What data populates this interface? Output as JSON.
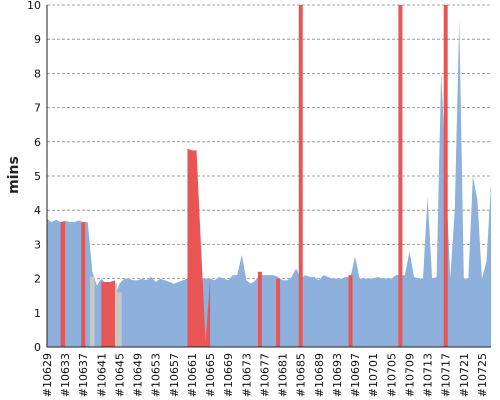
{
  "chart_data": {
    "type": "area",
    "ylabel": "mins",
    "xlabel": "",
    "ylim": [
      0,
      10
    ],
    "yticks": [
      0,
      1,
      2,
      3,
      4,
      5,
      6,
      7,
      8,
      9,
      10
    ],
    "grid": "horizontal-dashed",
    "x_tick_labels": [
      "#10629",
      "#10633",
      "#10637",
      "#10641",
      "#10645",
      "#10649",
      "#10653",
      "#10657",
      "#10661",
      "#10665",
      "#10669",
      "#10673",
      "#10677",
      "#10681",
      "#10685",
      "#10689",
      "#10693",
      "#10697",
      "#10701",
      "#10705",
      "#10709",
      "#10713",
      "#10717",
      "#10721",
      "#10725"
    ],
    "colors": {
      "area": "#8eb0dc",
      "fail": "#e85555",
      "gray": "#c8c8c8",
      "grid": "#888888",
      "axis": "#222222"
    },
    "series": [
      {
        "style": "area",
        "x": [
          10629,
          10630,
          10631,
          10632,
          10633,
          10634,
          10635,
          10636,
          10637,
          10638,
          10639,
          10640,
          10641,
          10642,
          10643,
          10644,
          10645,
          10646,
          10647,
          10648,
          10649,
          10650,
          10651,
          10652,
          10653,
          10654,
          10655,
          10656,
          10657,
          10658,
          10659,
          10660,
          10661,
          10662,
          10663,
          10664,
          10665,
          10666,
          10667,
          10668,
          10669,
          10670,
          10671,
          10672,
          10673,
          10674,
          10675,
          10676,
          10677,
          10678,
          10679,
          10680,
          10681,
          10682,
          10683,
          10684,
          10685,
          10686,
          10687,
          10688,
          10689,
          10690,
          10691,
          10692,
          10693,
          10694,
          10695,
          10696,
          10697,
          10698,
          10699,
          10700,
          10701,
          10702,
          10703,
          10704,
          10705,
          10706,
          10707,
          10708,
          10709,
          10710,
          10711,
          10712,
          10713,
          10714,
          10715,
          10716,
          10717,
          10718,
          10719,
          10720,
          10721,
          10722,
          10723,
          10724,
          10725,
          10726,
          10727
        ],
        "values": [
          3.75,
          3.65,
          3.72,
          3.65,
          3.7,
          3.65,
          3.65,
          3.7,
          3.65,
          3.65,
          2.2,
          1.8,
          2.0,
          1.85,
          1.9,
          1.5,
          1.85,
          2.0,
          2.0,
          1.95,
          1.95,
          2.0,
          1.95,
          2.05,
          1.9,
          2.0,
          1.95,
          1.9,
          1.85,
          1.9,
          1.95,
          2.0,
          2.0,
          2.0,
          2.0,
          2.0,
          2.0,
          1.95,
          2.05,
          2.0,
          1.95,
          2.1,
          2.1,
          2.7,
          1.95,
          1.85,
          1.95,
          2.1,
          2.1,
          2.1,
          2.1,
          2.05,
          1.95,
          1.95,
          2.05,
          2.3,
          2.0,
          2.1,
          2.05,
          2.05,
          1.95,
          2.1,
          2.05,
          2.0,
          2.0,
          2.0,
          2.05,
          2.05,
          2.65,
          2.0,
          2.0,
          2.0,
          2.0,
          2.05,
          2.0,
          2.0,
          2.0,
          2.1,
          2.1,
          2.1,
          2.8,
          2.05,
          2.0,
          2.0,
          4.4,
          2.0,
          2.05,
          8.05,
          5.2,
          2.0,
          4.0,
          9.6,
          2.0,
          2.0,
          5.0,
          4.3,
          2.0,
          2.5,
          4.75
        ]
      },
      {
        "style": "gray-bars",
        "x": [
          10639,
          10643,
          10644,
          10645
        ],
        "values": [
          2.05,
          1.85,
          1.85,
          1.6
        ]
      },
      {
        "style": "failed-builds",
        "x": [
          10632,
          10633,
          10637,
          10641,
          10642,
          10643,
          10644,
          10660,
          10661,
          10662,
          10663,
          10664,
          10665,
          10676,
          10680,
          10685,
          10696,
          10707,
          10717
        ],
        "values": [
          3.65,
          3.65,
          3.65,
          1.9,
          1.9,
          1.9,
          1.95,
          5.8,
          5.75,
          5.75,
          2.9,
          0.15,
          2.0,
          2.2,
          2.0,
          10,
          2.1,
          10,
          10
        ]
      }
    ]
  }
}
